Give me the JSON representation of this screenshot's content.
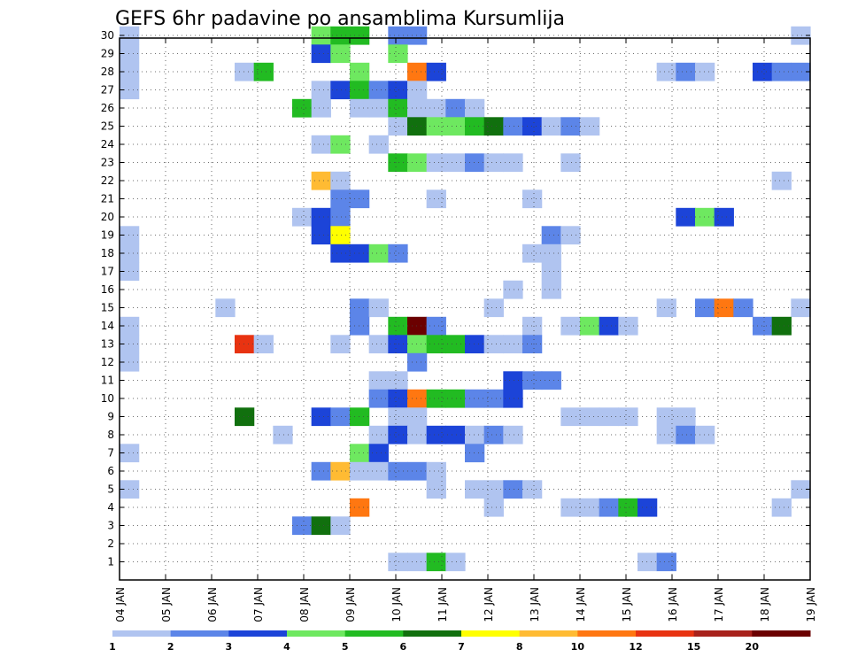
{
  "chart_data": {
    "type": "heatmap",
    "title": "GEFS 6hr padavine po ansamblima Kursumlija",
    "xlabel": "",
    "ylabel": "",
    "x_ticks": [
      "04 JAN",
      "05 JAN",
      "06 JAN",
      "07 JAN",
      "08 JAN",
      "09 JAN",
      "10 JAN",
      "11 JAN",
      "12 JAN",
      "13 JAN",
      "14 JAN",
      "15 JAN",
      "16 JAN",
      "17 JAN",
      "18 JAN",
      "19 JAN"
    ],
    "y_ticks": [
      "1",
      "2",
      "3",
      "4",
      "5",
      "6",
      "7",
      "8",
      "9",
      "10",
      "11",
      "12",
      "13",
      "14",
      "15",
      "16",
      "17",
      "18",
      "19",
      "20",
      "21",
      "22",
      "23",
      "24",
      "25",
      "26",
      "27",
      "28",
      "29",
      "30"
    ],
    "grid": true,
    "legend": "bottom colorbar",
    "colorbar": {
      "labels": [
        "1",
        "2",
        "3",
        "4",
        "5",
        "6",
        "7",
        "8",
        "10",
        "12",
        "15",
        "20"
      ],
      "colors": [
        "#b0c4f0",
        "#5c85e8",
        "#1c44d8",
        "#6ee860",
        "#22bb22",
        "#11700e",
        "#ffff00",
        "#ffbb33",
        "#ff7711",
        "#e83311",
        "#a8221c",
        "#6b0000"
      ]
    },
    "cells": [
      [
        0,
        30,
        1
      ],
      [
        10,
        30,
        4
      ],
      [
        11,
        30,
        5
      ],
      [
        12,
        30,
        5
      ],
      [
        14,
        30,
        2
      ],
      [
        15,
        30,
        2
      ],
      [
        35,
        30,
        1
      ],
      [
        0,
        29,
        1
      ],
      [
        10,
        29,
        3
      ],
      [
        11,
        29,
        4
      ],
      [
        14,
        29,
        4
      ],
      [
        0,
        28,
        1
      ],
      [
        6,
        28,
        1
      ],
      [
        7,
        28,
        5
      ],
      [
        12,
        28,
        4
      ],
      [
        15,
        28,
        9
      ],
      [
        16,
        28,
        3
      ],
      [
        28,
        28,
        1
      ],
      [
        29,
        28,
        2
      ],
      [
        30,
        28,
        1
      ],
      [
        33,
        28,
        3
      ],
      [
        34,
        28,
        2
      ],
      [
        35,
        28,
        2
      ],
      [
        0,
        27,
        1
      ],
      [
        10,
        27,
        1
      ],
      [
        11,
        27,
        3
      ],
      [
        12,
        27,
        5
      ],
      [
        13,
        27,
        2
      ],
      [
        14,
        27,
        3
      ],
      [
        15,
        27,
        1
      ],
      [
        9,
        26,
        5
      ],
      [
        10,
        26,
        1
      ],
      [
        12,
        26,
        1
      ],
      [
        13,
        26,
        1
      ],
      [
        14,
        26,
        5
      ],
      [
        15,
        26,
        1
      ],
      [
        16,
        26,
        1
      ],
      [
        17,
        26,
        2
      ],
      [
        18,
        26,
        1
      ],
      [
        14,
        25,
        1
      ],
      [
        15,
        25,
        6
      ],
      [
        16,
        25,
        4
      ],
      [
        17,
        25,
        4
      ],
      [
        18,
        25,
        5
      ],
      [
        19,
        25,
        6
      ],
      [
        20,
        25,
        2
      ],
      [
        21,
        25,
        3
      ],
      [
        22,
        25,
        1
      ],
      [
        23,
        25,
        2
      ],
      [
        24,
        25,
        1
      ],
      [
        10,
        24,
        1
      ],
      [
        11,
        24,
        4
      ],
      [
        13,
        24,
        1
      ],
      [
        14,
        23,
        5
      ],
      [
        15,
        23,
        4
      ],
      [
        16,
        23,
        1
      ],
      [
        17,
        23,
        1
      ],
      [
        18,
        23,
        2
      ],
      [
        19,
        23,
        1
      ],
      [
        20,
        23,
        1
      ],
      [
        23,
        23,
        1
      ],
      [
        10,
        22,
        8
      ],
      [
        11,
        22,
        1
      ],
      [
        34,
        22,
        1
      ],
      [
        11,
        21,
        2
      ],
      [
        12,
        21,
        2
      ],
      [
        16,
        21,
        1
      ],
      [
        21,
        21,
        1
      ],
      [
        9,
        20,
        1
      ],
      [
        10,
        20,
        3
      ],
      [
        11,
        20,
        2
      ],
      [
        29,
        20,
        3
      ],
      [
        30,
        20,
        4
      ],
      [
        31,
        20,
        3
      ],
      [
        0,
        19,
        1
      ],
      [
        10,
        19,
        3
      ],
      [
        11,
        19,
        7
      ],
      [
        22,
        19,
        2
      ],
      [
        23,
        19,
        1
      ],
      [
        0,
        18,
        1
      ],
      [
        11,
        18,
        3
      ],
      [
        12,
        18,
        3
      ],
      [
        13,
        18,
        4
      ],
      [
        14,
        18,
        2
      ],
      [
        21,
        18,
        1
      ],
      [
        22,
        18,
        1
      ],
      [
        0,
        17,
        1
      ],
      [
        22,
        17,
        1
      ],
      [
        20,
        16,
        1
      ],
      [
        22,
        16,
        1
      ],
      [
        5,
        15,
        1
      ],
      [
        12,
        15,
        2
      ],
      [
        13,
        15,
        1
      ],
      [
        19,
        15,
        1
      ],
      [
        28,
        15,
        1
      ],
      [
        30,
        15,
        2
      ],
      [
        31,
        15,
        9
      ],
      [
        32,
        15,
        2
      ],
      [
        35,
        15,
        1
      ],
      [
        0,
        14,
        1
      ],
      [
        12,
        14,
        2
      ],
      [
        14,
        14,
        5
      ],
      [
        15,
        14,
        12
      ],
      [
        16,
        14,
        2
      ],
      [
        21,
        14,
        1
      ],
      [
        23,
        14,
        1
      ],
      [
        24,
        14,
        4
      ],
      [
        25,
        14,
        3
      ],
      [
        26,
        14,
        1
      ],
      [
        33,
        14,
        2
      ],
      [
        34,
        14,
        6
      ],
      [
        0,
        13,
        1
      ],
      [
        6,
        13,
        10
      ],
      [
        7,
        13,
        1
      ],
      [
        11,
        13,
        1
      ],
      [
        13,
        13,
        1
      ],
      [
        14,
        13,
        3
      ],
      [
        15,
        13,
        4
      ],
      [
        16,
        13,
        5
      ],
      [
        17,
        13,
        5
      ],
      [
        18,
        13,
        3
      ],
      [
        19,
        13,
        1
      ],
      [
        20,
        13,
        1
      ],
      [
        21,
        13,
        2
      ],
      [
        0,
        12,
        1
      ],
      [
        15,
        12,
        2
      ],
      [
        13,
        11,
        1
      ],
      [
        14,
        11,
        1
      ],
      [
        20,
        11,
        3
      ],
      [
        21,
        11,
        2
      ],
      [
        22,
        11,
        2
      ],
      [
        13,
        10,
        2
      ],
      [
        14,
        10,
        3
      ],
      [
        15,
        10,
        9
      ],
      [
        16,
        10,
        5
      ],
      [
        17,
        10,
        5
      ],
      [
        18,
        10,
        2
      ],
      [
        19,
        10,
        2
      ],
      [
        20,
        10,
        3
      ],
      [
        6,
        9,
        6
      ],
      [
        10,
        9,
        3
      ],
      [
        11,
        9,
        2
      ],
      [
        12,
        9,
        5
      ],
      [
        14,
        9,
        1
      ],
      [
        15,
        9,
        1
      ],
      [
        23,
        9,
        1
      ],
      [
        24,
        9,
        1
      ],
      [
        25,
        9,
        1
      ],
      [
        26,
        9,
        1
      ],
      [
        28,
        9,
        1
      ],
      [
        29,
        9,
        1
      ],
      [
        8,
        8,
        1
      ],
      [
        13,
        8,
        1
      ],
      [
        14,
        8,
        3
      ],
      [
        15,
        8,
        1
      ],
      [
        16,
        8,
        3
      ],
      [
        17,
        8,
        3
      ],
      [
        18,
        8,
        1
      ],
      [
        19,
        8,
        2
      ],
      [
        20,
        8,
        1
      ],
      [
        28,
        8,
        1
      ],
      [
        29,
        8,
        2
      ],
      [
        30,
        8,
        1
      ],
      [
        0,
        7,
        1
      ],
      [
        12,
        7,
        4
      ],
      [
        13,
        7,
        3
      ],
      [
        18,
        7,
        2
      ],
      [
        10,
        6,
        2
      ],
      [
        11,
        6,
        8
      ],
      [
        12,
        6,
        1
      ],
      [
        13,
        6,
        1
      ],
      [
        14,
        6,
        2
      ],
      [
        15,
        6,
        2
      ],
      [
        16,
        6,
        1
      ],
      [
        0,
        5,
        1
      ],
      [
        16,
        5,
        1
      ],
      [
        18,
        5,
        1
      ],
      [
        19,
        5,
        1
      ],
      [
        20,
        5,
        2
      ],
      [
        21,
        5,
        1
      ],
      [
        35,
        5,
        1
      ],
      [
        12,
        4,
        9
      ],
      [
        19,
        4,
        1
      ],
      [
        23,
        4,
        1
      ],
      [
        24,
        4,
        1
      ],
      [
        25,
        4,
        2
      ],
      [
        26,
        4,
        5
      ],
      [
        27,
        4,
        3
      ],
      [
        34,
        4,
        1
      ],
      [
        9,
        3,
        2
      ],
      [
        10,
        3,
        6
      ],
      [
        11,
        3,
        1
      ],
      [
        14,
        1,
        1
      ],
      [
        15,
        1,
        1
      ],
      [
        16,
        1,
        5
      ],
      [
        17,
        1,
        1
      ],
      [
        27,
        1,
        1
      ],
      [
        28,
        1,
        2
      ]
    ]
  }
}
